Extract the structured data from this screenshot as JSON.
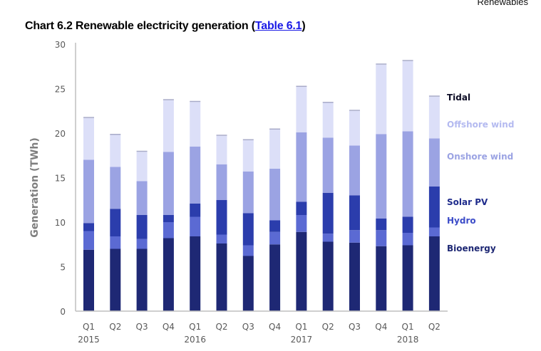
{
  "header": {
    "section_label": "Renewables"
  },
  "title": {
    "prefix": "Chart 6.2 Renewable electricity generation (",
    "link_text": "Table 6.1",
    "suffix": ")"
  },
  "chart_data": {
    "type": "bar",
    "stacked": true,
    "title": "Chart 6.2 Renewable electricity generation (Table 6.1)",
    "xlabel": "",
    "ylabel": "Generation (TWh)",
    "ylim": [
      0,
      30
    ],
    "yticks": [
      0,
      5,
      10,
      15,
      20,
      25,
      30
    ],
    "grid": false,
    "legend_position": "right",
    "categories": [
      "Q1",
      "Q2",
      "Q3",
      "Q4",
      "Q1",
      "Q2",
      "Q3",
      "Q4",
      "Q1",
      "Q2",
      "Q3",
      "Q4",
      "Q1",
      "Q2"
    ],
    "category_years": [
      "2015",
      "",
      "",
      "",
      "2016",
      "",
      "",
      "",
      "2017",
      "",
      "",
      "",
      "2018",
      ""
    ],
    "series": [
      {
        "name": "Bioenergy",
        "color": "#1e2874",
        "label_color": "#1e2874",
        "values": [
          6.9,
          7.0,
          7.0,
          8.2,
          8.4,
          7.6,
          6.2,
          7.5,
          8.9,
          7.8,
          7.7,
          7.3,
          7.4,
          8.4
        ]
      },
      {
        "name": "Hydro",
        "color": "#5b6ad3",
        "label_color": "#3b4bc8",
        "values": [
          2.1,
          1.4,
          1.1,
          1.8,
          2.2,
          1.0,
          1.2,
          1.4,
          1.9,
          0.9,
          1.4,
          1.8,
          1.4,
          1.0
        ]
      },
      {
        "name": "Solar PV",
        "color": "#2b3dac",
        "label_color": "#1f2c8c",
        "values": [
          0.9,
          3.1,
          2.7,
          0.8,
          1.5,
          3.9,
          3.6,
          1.3,
          1.5,
          4.6,
          3.9,
          1.3,
          1.8,
          4.6
        ]
      },
      {
        "name": "Onshore wind",
        "color": "#9ba3e3",
        "label_color": "#9ba3e3",
        "values": [
          7.1,
          4.7,
          3.8,
          7.1,
          6.4,
          4.0,
          4.7,
          5.8,
          7.8,
          6.2,
          5.6,
          9.5,
          9.6,
          5.4
        ]
      },
      {
        "name": "Offshore wind",
        "color": "#dcdff8",
        "label_color": "#b4baf0",
        "values": [
          4.7,
          3.6,
          3.3,
          5.8,
          5.0,
          3.2,
          3.5,
          4.4,
          5.1,
          3.9,
          3.9,
          7.8,
          7.9,
          4.7
        ]
      },
      {
        "name": "Tidal",
        "color": "#a8abc8",
        "label_color": "#0d0d26",
        "values": [
          0.1,
          0.1,
          0.1,
          0.1,
          0.1,
          0.1,
          0.1,
          0.1,
          0.1,
          0.1,
          0.1,
          0.1,
          0.1,
          0.1
        ]
      }
    ],
    "legend_order": [
      "Tidal",
      "Offshore wind",
      "Onshore wind",
      "Solar PV",
      "Hydro",
      "Bioenergy"
    ]
  }
}
